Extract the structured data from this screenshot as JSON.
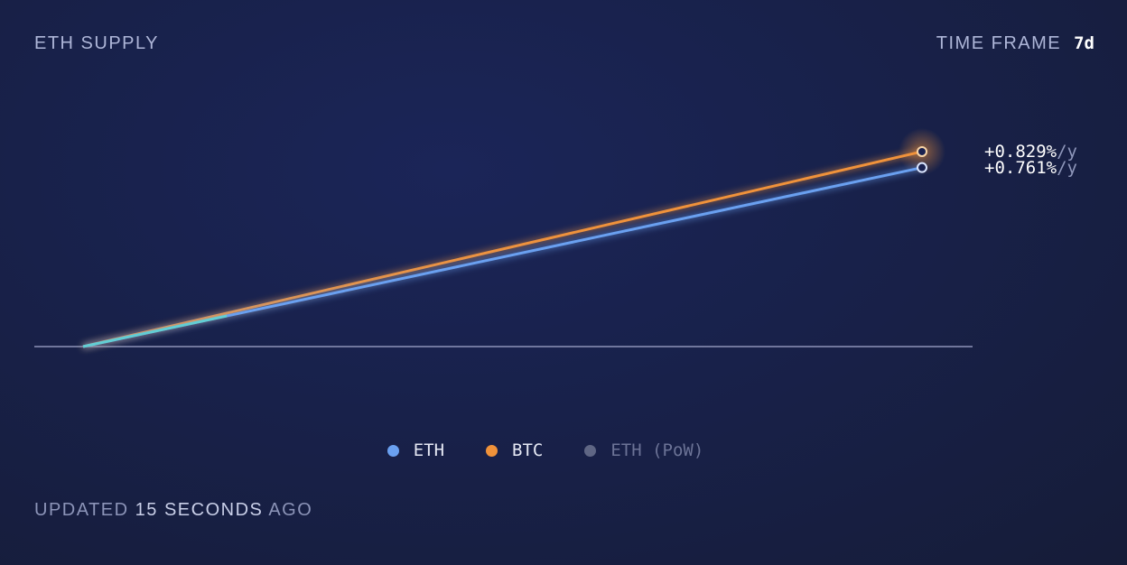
{
  "header": {
    "title": "ETH SUPPLY",
    "time_frame_label": "TIME FRAME",
    "time_frame_value": "7d"
  },
  "chart_data": {
    "type": "line",
    "x_unit": "days",
    "xlim": [
      0,
      7
    ],
    "ylim": [
      0,
      0.829
    ],
    "series": [
      {
        "name": "BTC",
        "color": "#f0923a",
        "x": [
          0,
          7
        ],
        "y": [
          0,
          0.829
        ],
        "end_label": "+0.829%",
        "unit": "/y"
      },
      {
        "name": "ETH",
        "color": "#6aa0f0",
        "x": [
          0,
          7
        ],
        "y": [
          0,
          0.761
        ],
        "end_label": "+0.761%",
        "unit": "/y"
      }
    ],
    "baseline": 0,
    "legend": [
      {
        "name": "ETH",
        "color": "#6aa0f0"
      },
      {
        "name": "BTC",
        "color": "#f0923a"
      },
      {
        "name": "ETH (PoW)",
        "color": "#5f6684",
        "disabled": true
      }
    ],
    "legend_position": "bottom"
  },
  "footer": {
    "prefix": "UPDATED",
    "value": "15 SECONDS",
    "suffix": "AGO"
  }
}
